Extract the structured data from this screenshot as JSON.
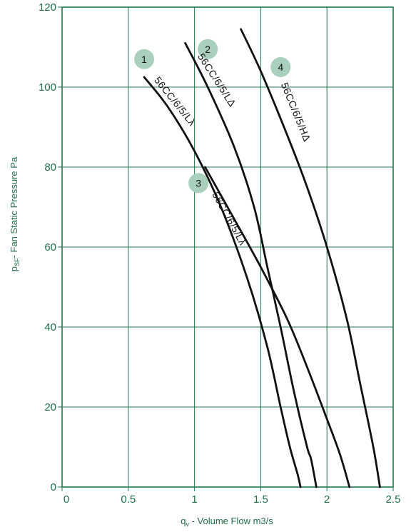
{
  "chart_data": {
    "type": "line",
    "xlabel_main": "q",
    "xlabel_sub": "v",
    "xlabel_rest": " - Volume Flow m3/s",
    "ylabel_main": "p",
    "ylabel_sub": "SF",
    "ylabel_rest": "-  Fan Static Pressure Pa",
    "xlim": [
      0,
      2.5
    ],
    "ylim": [
      0,
      120
    ],
    "x_ticks": [
      "0",
      "0.5",
      "1",
      "1.5",
      "2",
      "2.5"
    ],
    "y_ticks": [
      "0",
      "20",
      "40",
      "60",
      "80",
      "100",
      "120"
    ],
    "grid": true,
    "colors": {
      "axis": "#1f6f4a",
      "curve": "#111111",
      "badge": "#a9d0bd"
    },
    "series": [
      {
        "name": "56CC/6/5/Lλ",
        "badge": "1",
        "points": [
          [
            0.62,
            102.5
          ],
          [
            0.8,
            95
          ],
          [
            1.0,
            84
          ],
          [
            1.2,
            70
          ],
          [
            1.4,
            52
          ],
          [
            1.55,
            35
          ],
          [
            1.65,
            20
          ],
          [
            1.72,
            10
          ],
          [
            1.78,
            3
          ],
          [
            1.8,
            0
          ]
        ]
      },
      {
        "name": "56CC/6/5/LΔ",
        "badge": "2",
        "points": [
          [
            0.93,
            111
          ],
          [
            1.1,
            100
          ],
          [
            1.3,
            85
          ],
          [
            1.45,
            70
          ],
          [
            1.55,
            55
          ],
          [
            1.65,
            40
          ],
          [
            1.75,
            24
          ],
          [
            1.85,
            10
          ],
          [
            1.88,
            7
          ],
          [
            1.92,
            0
          ]
        ]
      },
      {
        "name": "56CC/6/5/Lλ",
        "badge": "3",
        "points": [
          [
            1.08,
            80
          ],
          [
            1.3,
            67
          ],
          [
            1.5,
            55
          ],
          [
            1.7,
            42
          ],
          [
            1.85,
            30
          ],
          [
            2.0,
            17
          ],
          [
            2.1,
            8
          ],
          [
            2.17,
            0
          ]
        ]
      },
      {
        "name": "56CC/6/5/HΔ",
        "badge": "4",
        "points": [
          [
            1.35,
            114.5
          ],
          [
            1.5,
            104
          ],
          [
            1.7,
            88
          ],
          [
            1.85,
            75
          ],
          [
            2.0,
            60
          ],
          [
            2.15,
            42
          ],
          [
            2.25,
            26
          ],
          [
            2.35,
            10
          ],
          [
            2.4,
            0
          ]
        ]
      }
    ]
  }
}
